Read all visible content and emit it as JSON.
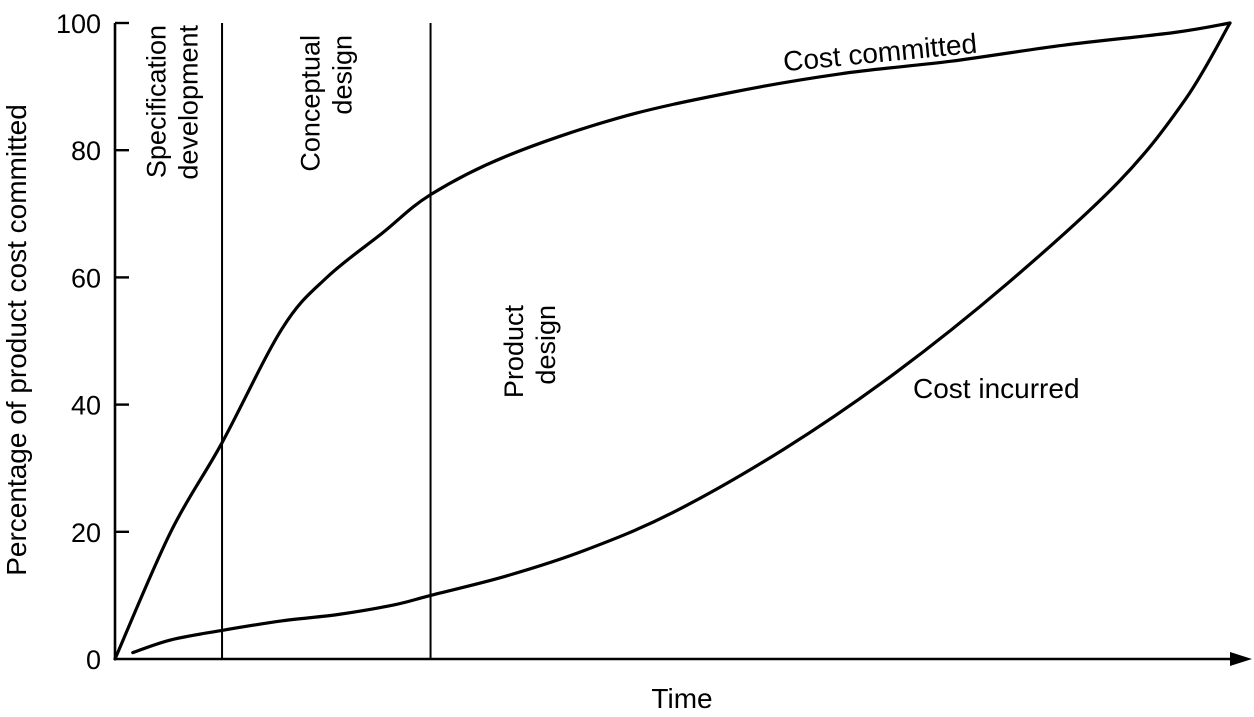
{
  "chart_data": {
    "type": "line",
    "xlabel": "Time",
    "ylabel": "Percentage of product cost committed",
    "ylim": [
      0,
      100
    ],
    "xlim": [
      0,
      1
    ],
    "yticks": [
      0,
      20,
      40,
      60,
      80,
      100
    ],
    "grid": false,
    "phases": [
      {
        "label_lines": [
          "Specification",
          "development"
        ],
        "end": 0.096
      },
      {
        "label_lines": [
          "Conceptual",
          "design"
        ],
        "end": 0.283
      },
      {
        "label_lines": [
          "Product",
          "design"
        ],
        "end": 1.0
      }
    ],
    "series": [
      {
        "name": "Cost committed",
        "x": [
          0.0,
          0.05,
          0.096,
          0.15,
          0.19,
          0.24,
          0.283,
          0.35,
          0.45,
          0.55,
          0.65,
          0.75,
          0.85,
          0.95,
          1.0
        ],
        "y": [
          0,
          20,
          34,
          52,
          60,
          67,
          73,
          79,
          85,
          89,
          92,
          94,
          96.5,
          98.5,
          100
        ]
      },
      {
        "name": "Cost incurred",
        "x": [
          0.016,
          0.05,
          0.096,
          0.15,
          0.2,
          0.25,
          0.283,
          0.35,
          0.42,
          0.5,
          0.6,
          0.7,
          0.8,
          0.9,
          0.96,
          1.0
        ],
        "y": [
          1,
          3,
          4.5,
          6,
          7,
          8.5,
          10,
          13,
          17,
          23,
          33,
          45,
          59,
          75,
          88,
          100
        ]
      }
    ]
  }
}
